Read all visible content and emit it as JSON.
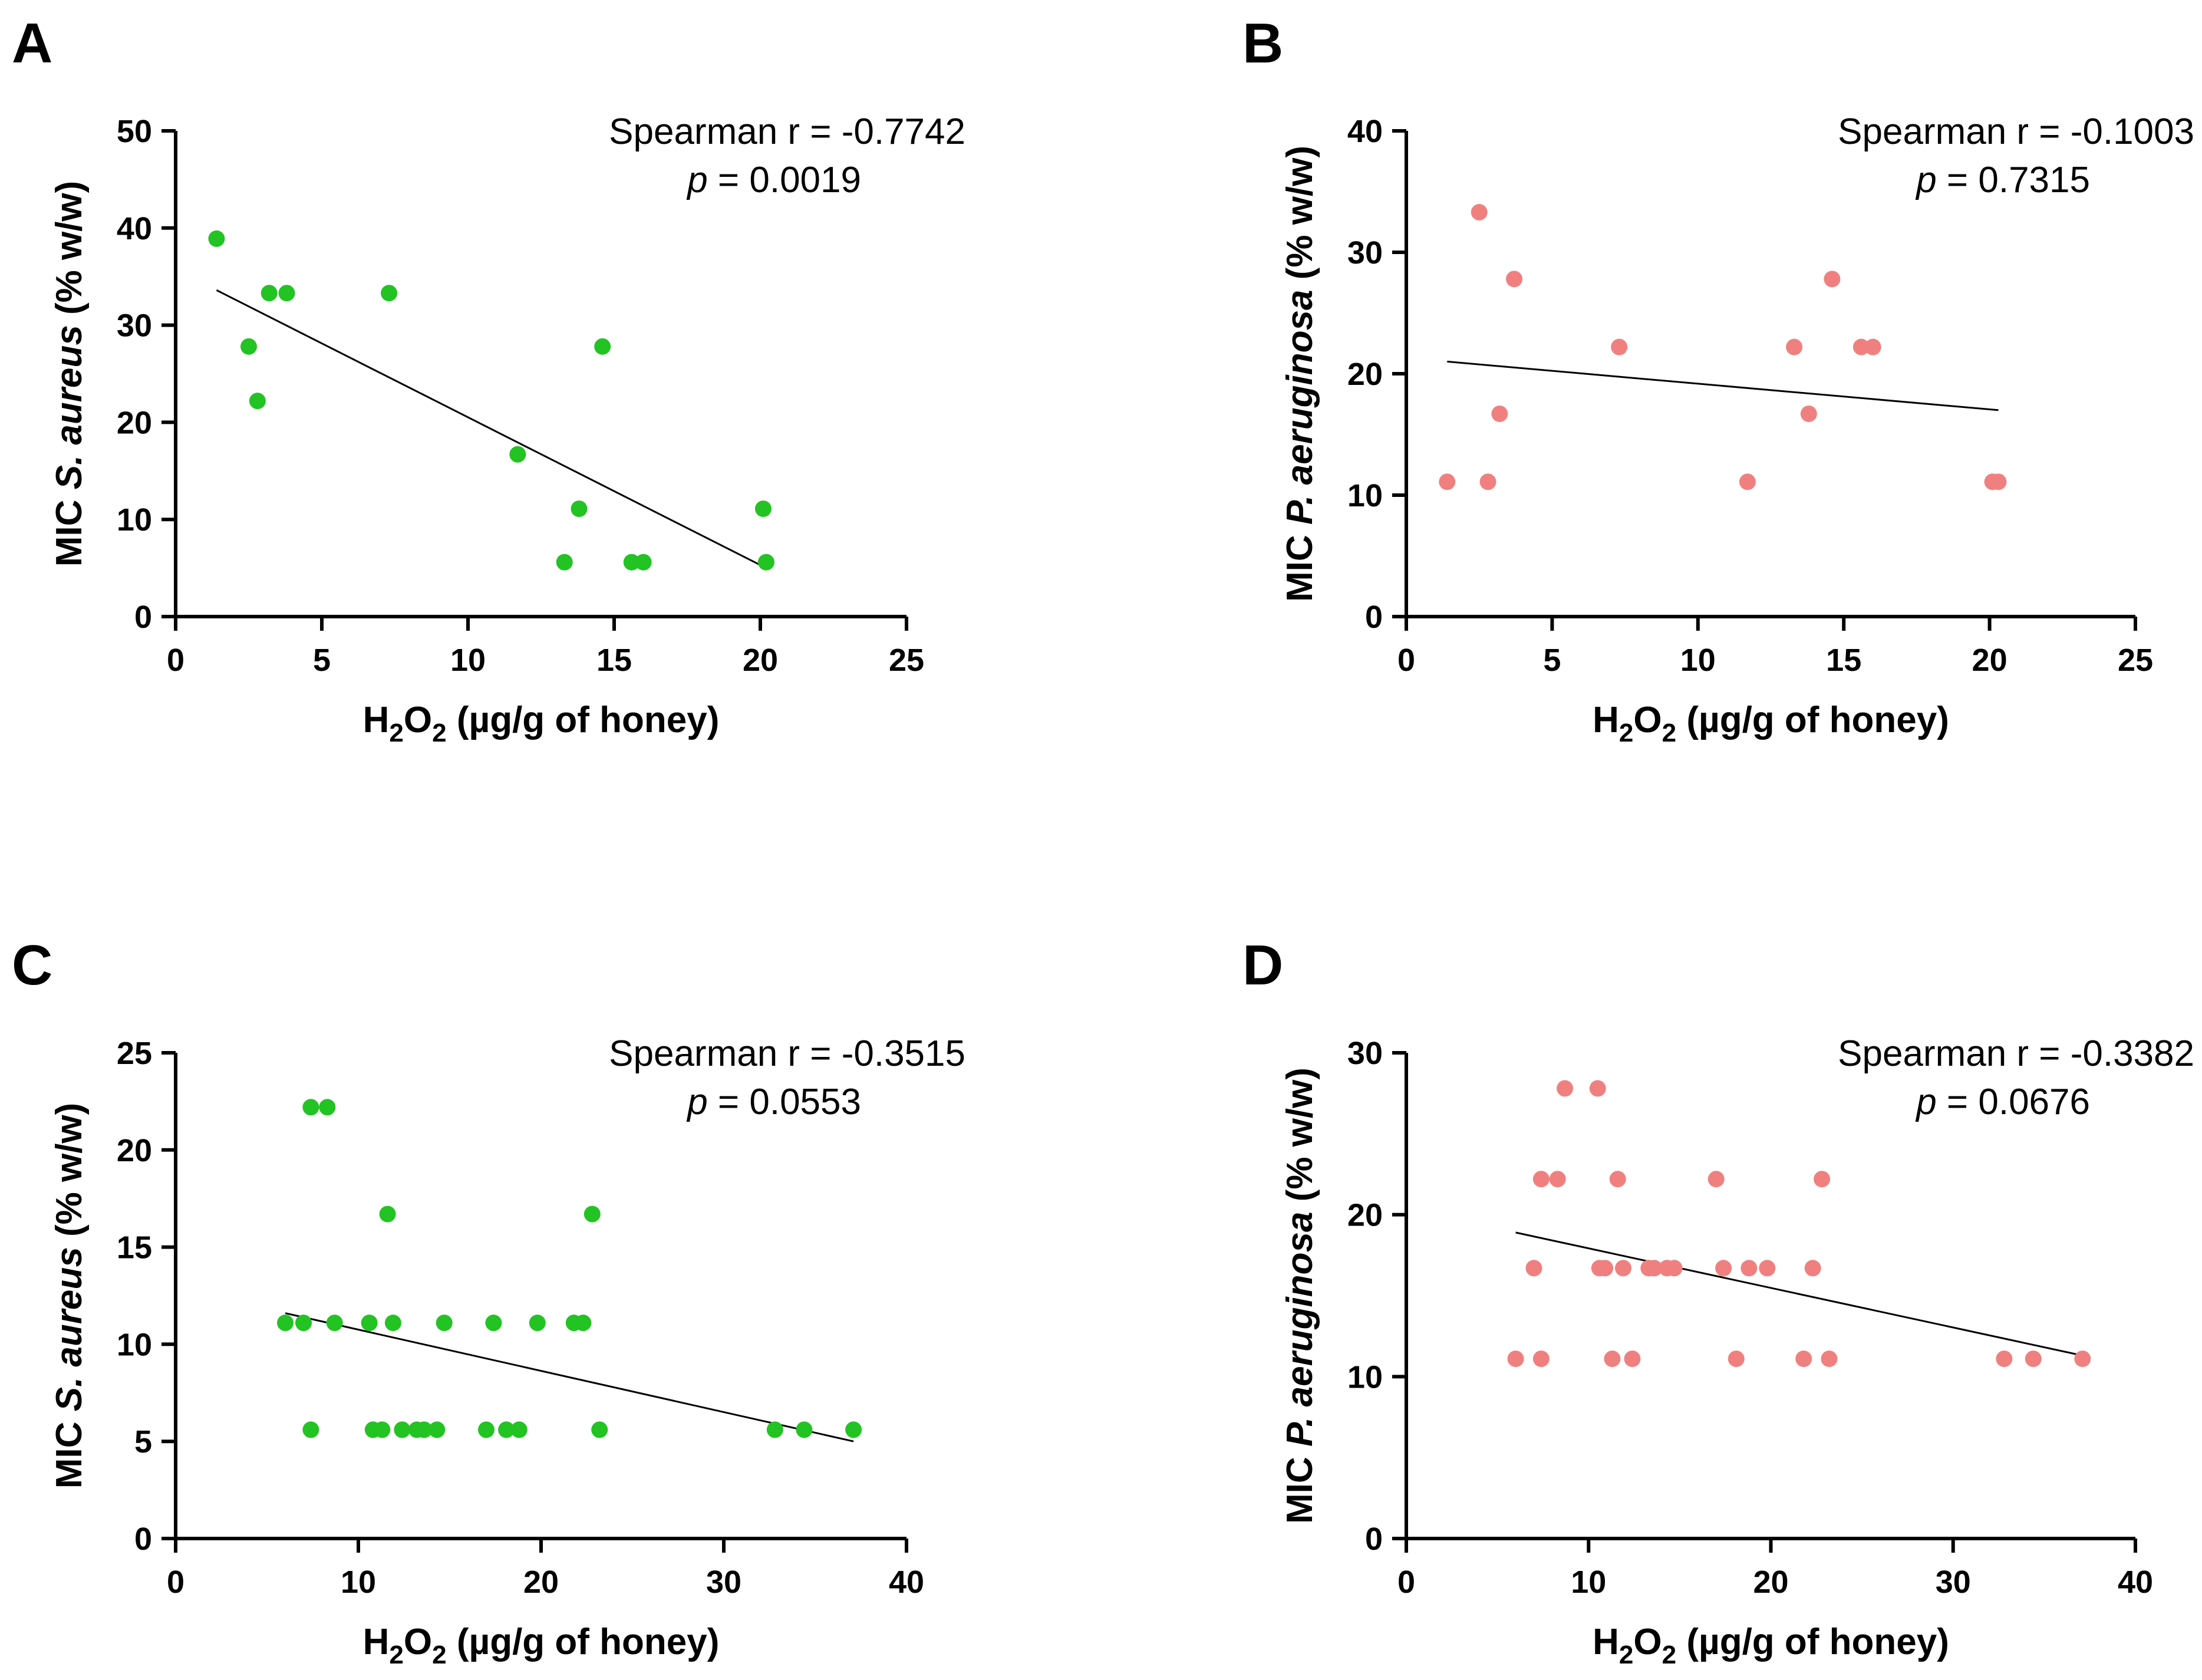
{
  "chart_data": [
    {
      "type": "scatter",
      "panel": "A",
      "series_color": "#22c322",
      "xlabel_main": "H",
      "xlabel_sub1": "2",
      "xlabel_mid": "O",
      "xlabel_sub2": "2",
      "xlabel_tail": " (µg/g of honey)",
      "ylabel_pre": "MIC ",
      "ylabel_italic": "S. aureus",
      "ylabel_post": " (% w/w)",
      "xlim": [
        0,
        25
      ],
      "ylim": [
        0,
        50
      ],
      "xticks": [
        0,
        5,
        10,
        15,
        20,
        25
      ],
      "yticks": [
        0,
        10,
        20,
        30,
        40,
        50
      ],
      "stat_r": "Spearman r = -0.7742",
      "stat_p_label": "p",
      "stat_p_value": " = 0.0019",
      "points": [
        {
          "x": 1.4,
          "y": 38.9
        },
        {
          "x": 2.5,
          "y": 27.8
        },
        {
          "x": 2.8,
          "y": 22.2
        },
        {
          "x": 3.2,
          "y": 33.3
        },
        {
          "x": 3.8,
          "y": 33.3
        },
        {
          "x": 7.3,
          "y": 33.3
        },
        {
          "x": 11.7,
          "y": 16.7
        },
        {
          "x": 13.3,
          "y": 5.6
        },
        {
          "x": 13.8,
          "y": 11.1
        },
        {
          "x": 14.6,
          "y": 27.8
        },
        {
          "x": 15.6,
          "y": 5.6
        },
        {
          "x": 16.0,
          "y": 5.6
        },
        {
          "x": 20.1,
          "y": 11.1
        },
        {
          "x": 20.2,
          "y": 5.6
        }
      ],
      "fit": {
        "x": [
          1.4,
          20.2
        ],
        "y": [
          33.6,
          5.0
        ]
      }
    },
    {
      "type": "scatter",
      "panel": "B",
      "series_color": "#f08080",
      "xlabel_main": "H",
      "xlabel_sub1": "2",
      "xlabel_mid": "O",
      "xlabel_sub2": "2",
      "xlabel_tail": " (µg/g of honey)",
      "ylabel_pre": "MIC ",
      "ylabel_italic": "P. aeruginosa",
      "ylabel_post": " (% w/w)",
      "xlim": [
        0,
        25
      ],
      "ylim": [
        0,
        40
      ],
      "xticks": [
        0,
        5,
        10,
        15,
        20,
        25
      ],
      "yticks": [
        0,
        10,
        20,
        30,
        40
      ],
      "stat_r": "Spearman r = -0.1003",
      "stat_p_label": "p",
      "stat_p_value": " = 0.7315",
      "points": [
        {
          "x": 1.4,
          "y": 11.1
        },
        {
          "x": 2.5,
          "y": 33.3
        },
        {
          "x": 2.8,
          "y": 11.1
        },
        {
          "x": 3.2,
          "y": 16.7
        },
        {
          "x": 3.7,
          "y": 27.8
        },
        {
          "x": 7.3,
          "y": 22.2
        },
        {
          "x": 11.7,
          "y": 11.1
        },
        {
          "x": 13.3,
          "y": 22.2
        },
        {
          "x": 13.8,
          "y": 16.7
        },
        {
          "x": 14.6,
          "y": 27.8
        },
        {
          "x": 15.6,
          "y": 22.2
        },
        {
          "x": 16.0,
          "y": 22.2
        },
        {
          "x": 20.1,
          "y": 11.1
        },
        {
          "x": 20.3,
          "y": 11.1
        }
      ],
      "fit": {
        "x": [
          1.4,
          20.3
        ],
        "y": [
          21.0,
          17.0
        ]
      }
    },
    {
      "type": "scatter",
      "panel": "C",
      "series_color": "#22c322",
      "xlabel_main": "H",
      "xlabel_sub1": "2",
      "xlabel_mid": "O",
      "xlabel_sub2": "2",
      "xlabel_tail": " (µg/g of honey)",
      "ylabel_pre": "MIC ",
      "ylabel_italic": "S. aureus",
      "ylabel_post": " (% w/w)",
      "xlim": [
        0,
        40
      ],
      "ylim": [
        0,
        25
      ],
      "xticks": [
        0,
        10,
        20,
        30,
        40
      ],
      "yticks": [
        0,
        5,
        10,
        15,
        20,
        25
      ],
      "stat_r": "Spearman r = -0.3515",
      "stat_p_label": "p",
      "stat_p_value": " = 0.0553",
      "points": [
        {
          "x": 6.0,
          "y": 11.1
        },
        {
          "x": 7.0,
          "y": 11.1
        },
        {
          "x": 7.4,
          "y": 22.2
        },
        {
          "x": 7.4,
          "y": 5.6
        },
        {
          "x": 8.3,
          "y": 22.2
        },
        {
          "x": 8.7,
          "y": 11.1
        },
        {
          "x": 10.6,
          "y": 11.1
        },
        {
          "x": 10.8,
          "y": 5.6
        },
        {
          "x": 11.3,
          "y": 5.6
        },
        {
          "x": 11.6,
          "y": 16.7
        },
        {
          "x": 11.9,
          "y": 11.1
        },
        {
          "x": 12.4,
          "y": 5.6
        },
        {
          "x": 13.2,
          "y": 5.6
        },
        {
          "x": 13.6,
          "y": 5.6
        },
        {
          "x": 14.3,
          "y": 5.6
        },
        {
          "x": 14.7,
          "y": 11.1
        },
        {
          "x": 17.0,
          "y": 5.6
        },
        {
          "x": 17.4,
          "y": 11.1
        },
        {
          "x": 18.1,
          "y": 5.6
        },
        {
          "x": 18.8,
          "y": 5.6
        },
        {
          "x": 19.8,
          "y": 11.1
        },
        {
          "x": 21.8,
          "y": 11.1
        },
        {
          "x": 22.3,
          "y": 11.1
        },
        {
          "x": 22.8,
          "y": 16.7
        },
        {
          "x": 23.2,
          "y": 5.6
        },
        {
          "x": 32.8,
          "y": 5.6
        },
        {
          "x": 34.4,
          "y": 5.6
        },
        {
          "x": 37.1,
          "y": 5.6
        }
      ],
      "fit": {
        "x": [
          6.0,
          37.1
        ],
        "y": [
          11.6,
          5.0
        ]
      }
    },
    {
      "type": "scatter",
      "panel": "D",
      "series_color": "#f08080",
      "xlabel_main": "H",
      "xlabel_sub1": "2",
      "xlabel_mid": "O",
      "xlabel_sub2": "2",
      "xlabel_tail": " (µg/g of honey)",
      "ylabel_pre": "MIC ",
      "ylabel_italic": "P. aeruginosa",
      "ylabel_post": " (% w/w)",
      "xlim": [
        0,
        40
      ],
      "ylim": [
        0,
        30
      ],
      "xticks": [
        0,
        10,
        20,
        30,
        40
      ],
      "yticks": [
        0,
        10,
        20,
        30
      ],
      "stat_r": "Spearman r = -0.3382",
      "stat_p_label": "p",
      "stat_p_value": " = 0.0676",
      "points": [
        {
          "x": 6.0,
          "y": 11.1
        },
        {
          "x": 7.0,
          "y": 16.7
        },
        {
          "x": 7.4,
          "y": 11.1
        },
        {
          "x": 7.4,
          "y": 22.2
        },
        {
          "x": 8.3,
          "y": 22.2
        },
        {
          "x": 8.7,
          "y": 27.8
        },
        {
          "x": 10.5,
          "y": 27.8
        },
        {
          "x": 10.6,
          "y": 16.7
        },
        {
          "x": 10.9,
          "y": 16.7
        },
        {
          "x": 11.3,
          "y": 11.1
        },
        {
          "x": 11.6,
          "y": 22.2
        },
        {
          "x": 11.9,
          "y": 16.7
        },
        {
          "x": 12.4,
          "y": 11.1
        },
        {
          "x": 13.3,
          "y": 16.7
        },
        {
          "x": 13.6,
          "y": 16.7
        },
        {
          "x": 14.3,
          "y": 16.7
        },
        {
          "x": 14.7,
          "y": 16.7
        },
        {
          "x": 17.0,
          "y": 22.2
        },
        {
          "x": 17.4,
          "y": 16.7
        },
        {
          "x": 18.1,
          "y": 11.1
        },
        {
          "x": 18.8,
          "y": 16.7
        },
        {
          "x": 19.8,
          "y": 16.7
        },
        {
          "x": 21.8,
          "y": 11.1
        },
        {
          "x": 22.3,
          "y": 16.7
        },
        {
          "x": 22.8,
          "y": 22.2
        },
        {
          "x": 23.2,
          "y": 11.1
        },
        {
          "x": 32.8,
          "y": 11.1
        },
        {
          "x": 34.4,
          "y": 11.1
        },
        {
          "x": 37.1,
          "y": 11.1
        }
      ],
      "fit": {
        "x": [
          6.0,
          37.1
        ],
        "y": [
          18.9,
          11.3
        ]
      }
    }
  ]
}
